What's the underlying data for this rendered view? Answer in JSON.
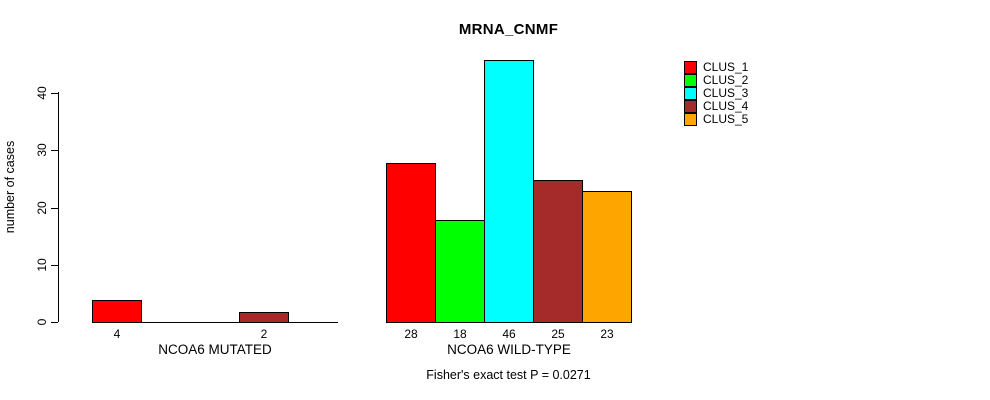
{
  "chart_data": {
    "type": "bar",
    "title": "MRNA_CNMF",
    "subtitle": "Fisher's exact test P = 0.0271",
    "ylabel": "number of cases",
    "xlabel": "",
    "ylim": [
      0,
      46
    ],
    "yticks": [
      0,
      10,
      20,
      30,
      40
    ],
    "grid": false,
    "legend_position": "top-right",
    "series": [
      {
        "name": "CLUS_1",
        "color": "#FF0000"
      },
      {
        "name": "CLUS_2",
        "color": "#00FF00"
      },
      {
        "name": "CLUS_3",
        "color": "#00FFFF"
      },
      {
        "name": "CLUS_4",
        "color": "#A52A2A"
      },
      {
        "name": "CLUS_5",
        "color": "#FFA500"
      }
    ],
    "groups": [
      {
        "label": "NCOA6 MUTATED",
        "values": [
          4,
          0,
          0,
          2,
          0
        ]
      },
      {
        "label": "NCOA6 WILD-TYPE",
        "values": [
          28,
          18,
          46,
          25,
          23
        ]
      }
    ]
  }
}
